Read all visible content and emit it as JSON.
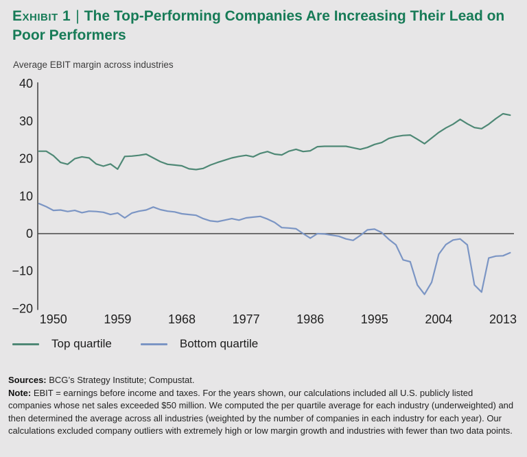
{
  "header": {
    "exhibit_label": "Exhibit 1",
    "separator": "|",
    "title": "The Top-Performing Companies Are Increasing Their Lead on Poor Performers",
    "accent_color": "#177b57"
  },
  "chart": {
    "subtitle": "Average EBIT margin across industries"
  },
  "chart_data": {
    "type": "line",
    "title": "Exhibit 1 | The Top-Performing Companies Are Increasing Their Lead on Poor Performers",
    "xlabel": "",
    "ylabel": "Average EBIT margin across industries",
    "ylim": [
      -20,
      40
    ],
    "grid": false,
    "zero_line": true,
    "legend_position": "bottom",
    "x_ticks": [
      1950,
      1959,
      1968,
      1977,
      1986,
      1995,
      2004,
      2013
    ],
    "y_ticks": [
      40,
      30,
      20,
      10,
      0,
      -10,
      -20
    ],
    "x": [
      1948,
      1949,
      1950,
      1951,
      1952,
      1953,
      1954,
      1955,
      1956,
      1957,
      1958,
      1959,
      1960,
      1961,
      1962,
      1963,
      1964,
      1965,
      1966,
      1967,
      1968,
      1969,
      1970,
      1971,
      1972,
      1973,
      1974,
      1975,
      1976,
      1977,
      1978,
      1979,
      1980,
      1981,
      1982,
      1983,
      1984,
      1985,
      1986,
      1987,
      1988,
      1989,
      1990,
      1991,
      1992,
      1993,
      1994,
      1995,
      1996,
      1997,
      1998,
      1999,
      2000,
      2001,
      2002,
      2003,
      2004,
      2005,
      2006,
      2007,
      2008,
      2009,
      2010,
      2011,
      2012,
      2013,
      2014
    ],
    "series": [
      {
        "name": "Top quartile",
        "color": "#4e8875",
        "values": [
          22,
          22,
          20.8,
          19,
          18.5,
          20,
          20.5,
          20.2,
          18.6,
          18,
          18.6,
          17.2,
          20.6,
          20.7,
          20.9,
          21.2,
          20.2,
          19.2,
          18.5,
          18.3,
          18.1,
          17.3,
          17.1,
          17.4,
          18.3,
          19,
          19.6,
          20.2,
          20.6,
          20.9,
          20.5,
          21.4,
          21.9,
          21.2,
          21,
          22,
          22.5,
          21.9,
          22.1,
          23.2,
          23.3,
          23.3,
          23.3,
          23.3,
          22.9,
          22.5,
          23,
          23.8,
          24.3,
          25.4,
          25.9,
          26.2,
          26.3,
          25.2,
          24,
          25.5,
          27,
          28.2,
          29.2,
          30.5,
          29.3,
          28.3,
          28,
          29.2,
          30.7,
          32,
          31.6
        ]
      },
      {
        "name": "Bottom quartile",
        "color": "#7b95c4",
        "values": [
          8,
          7.2,
          6.2,
          6.3,
          5.9,
          6.2,
          5.6,
          6,
          5.9,
          5.7,
          5.1,
          5.5,
          4.2,
          5.5,
          6,
          6.3,
          7.1,
          6.4,
          6,
          5.8,
          5.3,
          5.1,
          4.9,
          4,
          3.4,
          3.2,
          3.6,
          4,
          3.6,
          4.2,
          4.4,
          4.6,
          3.9,
          3,
          1.6,
          1.5,
          1.3,
          0,
          -1.2,
          0,
          -0.1,
          -0.4,
          -0.7,
          -1.4,
          -1.8,
          -0.5,
          1,
          1.2,
          0.3,
          -1.5,
          -3,
          -7,
          -7.5,
          -13.7,
          -16.2,
          -13,
          -5.5,
          -2.9,
          -1.7,
          -1.4,
          -3,
          -13.7,
          -15.6,
          -6.5,
          -6,
          -5.9,
          -5.1
        ]
      }
    ]
  },
  "legend": {
    "items": [
      {
        "label": "Top quartile",
        "color": "#4e8875"
      },
      {
        "label": "Bottom quartile",
        "color": "#7b95c4"
      }
    ]
  },
  "footnotes": {
    "sources_label": "Sources:",
    "sources_text": " BCG’s Strategy Institute; Compustat.",
    "note_label": "Note:",
    "note_text": " EBIT = earnings before income and taxes. For the years shown, our calculations included all U.S. publicly listed companies whose net sales exceeded $50 million. We computed the per quartile average for each industry (underweighted) and then determined the average across all industries (weighted by the number of companies in each industry for each year). Our calculations excluded company outliers with extremely high or low margin growth and industries with fewer than two data points."
  }
}
